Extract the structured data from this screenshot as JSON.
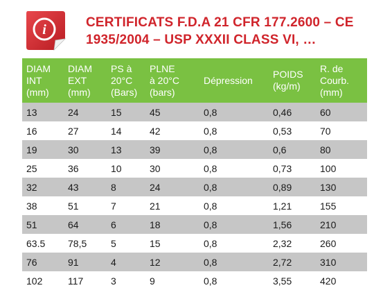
{
  "title": {
    "line1": "CERTIFICATS F.D.A 21 CFR 177.2600 – CE",
    "line2": "1935/2004 – USP XXXII CLASS VI, …"
  },
  "icon": {
    "name": "info-icon",
    "glyph": "i",
    "color": "#d0242b"
  },
  "colors": {
    "header_bg": "#7ac142",
    "row_alt": "#c6c6c6",
    "title": "#d0242b"
  },
  "table": {
    "headers": [
      [
        "DIAM",
        "INT",
        "(mm)"
      ],
      [
        "DIAM",
        "EXT",
        "(mm)"
      ],
      [
        "PS à",
        "20°C",
        "(Bars)"
      ],
      [
        "PLNE",
        "à 20°C",
        "(bars)"
      ],
      [
        "Dépression"
      ],
      [
        "POIDS",
        "(kg/m)"
      ],
      [
        "R. de",
        "Courb.",
        "(mm)"
      ]
    ],
    "rows": [
      [
        "13",
        "24",
        "15",
        "45",
        "0,8",
        "0,46",
        "60"
      ],
      [
        "16",
        "27",
        "14",
        "42",
        "0,8",
        "0,53",
        "70"
      ],
      [
        "19",
        "30",
        "13",
        "39",
        "0,8",
        "0,6",
        "80"
      ],
      [
        "25",
        "36",
        "10",
        "30",
        "0,8",
        "0,73",
        "100"
      ],
      [
        "32",
        "43",
        "8",
        "24",
        "0,8",
        "0,89",
        "130"
      ],
      [
        "38",
        "51",
        "7",
        "21",
        "0,8",
        "1,21",
        "155"
      ],
      [
        "51",
        "64",
        "6",
        "18",
        "0,8",
        "1,56",
        "210"
      ],
      [
        "63.5",
        "78,5",
        "5",
        "15",
        "0,8",
        "2,32",
        "260"
      ],
      [
        "76",
        "91",
        "4",
        "12",
        "0,8",
        "2,72",
        "310"
      ],
      [
        "102",
        "117",
        "3",
        "9",
        "0,8",
        "3,55",
        "420"
      ]
    ]
  }
}
